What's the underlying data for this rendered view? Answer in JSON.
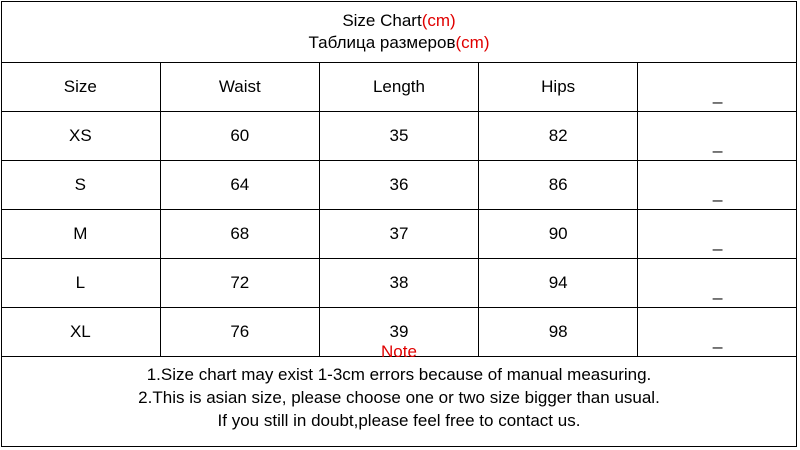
{
  "title": {
    "line1": "Size Chart",
    "line1_unit": "(cm)",
    "line2": "Таблица размеров",
    "line2_unit": "(cm)"
  },
  "table": {
    "headers": [
      "Size",
      "Waist",
      "Length",
      "Hips",
      "_"
    ],
    "rows": [
      [
        "XS",
        "60",
        "35",
        "82",
        "_"
      ],
      [
        "S",
        "64",
        "36",
        "86",
        "_"
      ],
      [
        "M",
        "68",
        "37",
        "90",
        "_"
      ],
      [
        "L",
        "72",
        "38",
        "94",
        "_"
      ],
      [
        "XL",
        "76",
        "39",
        "98",
        "_"
      ]
    ]
  },
  "note": {
    "heading": "Note",
    "lines": [
      "1.Size chart may exist 1-3cm errors because of manual measuring.",
      "2.This is asian size, please choose one or two size bigger than usual.",
      "If you still in doubt,please feel free to contact us."
    ]
  },
  "colors": {
    "accent": "#e00000",
    "border": "#000000"
  }
}
